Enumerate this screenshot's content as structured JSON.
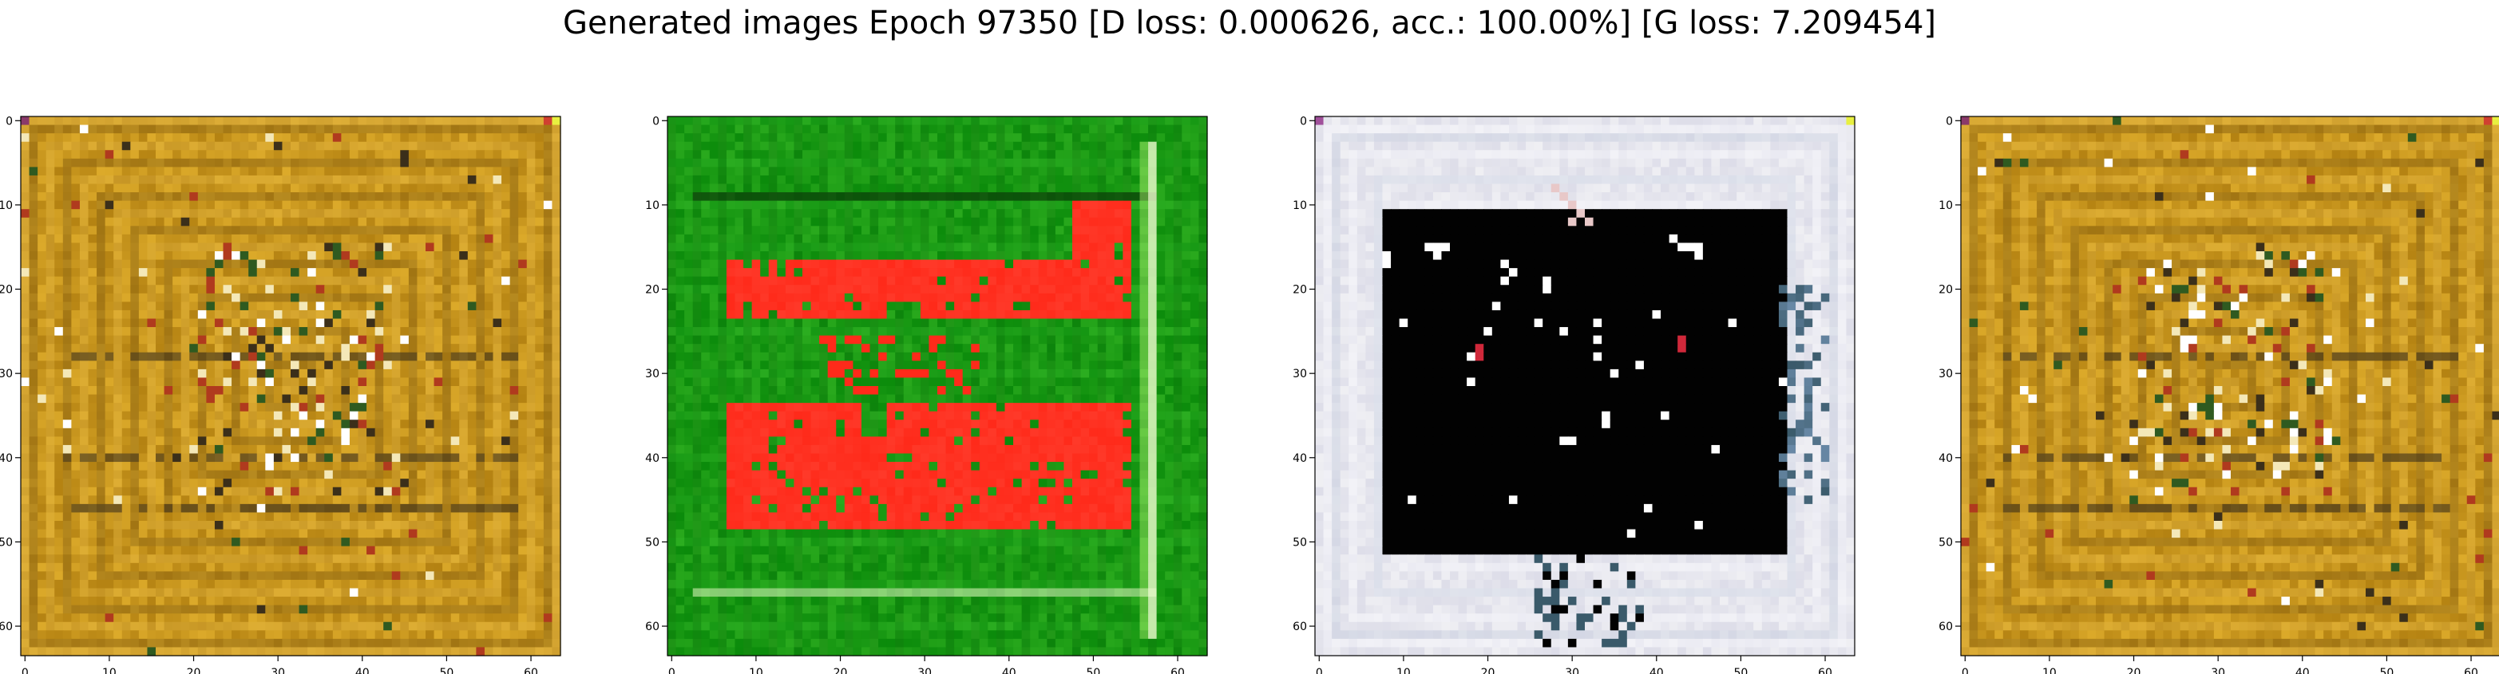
{
  "figure": {
    "title": "Generated images Epoch 97350 [D loss: 0.000626, acc.: 100.00%] [G loss: 7.209454]"
  },
  "axes": {
    "ticks": [
      "0",
      "10",
      "20",
      "30",
      "40",
      "50",
      "60"
    ]
  },
  "images": [
    {
      "name": "sample-1",
      "palette": {
        "base": "#c8961e",
        "light": "#e0b240",
        "dark": "#8a6414",
        "accents": [
          "#2f5a20",
          "#3b2f1a",
          "#f4e8b8",
          "#b03a1e",
          "#ffffff"
        ]
      }
    },
    {
      "name": "sample-2",
      "palette": {
        "base": "#1a9a14",
        "light": "#36c030",
        "dark": "#0f6e0c",
        "blob": "#ff2a1a",
        "accents": [
          "#f0ffd0",
          "#0a3a08",
          "#ff6050",
          "#c8ff80"
        ]
      }
    },
    {
      "name": "sample-3",
      "palette": {
        "base": "#e6e6ee",
        "light": "#f6f6fb",
        "dark": "#c6cede",
        "center": "#020202",
        "accents": [
          "#ffffff",
          "#d0283a",
          "#6a8aa8",
          "#3a5a6a"
        ]
      }
    },
    {
      "name": "sample-4",
      "palette": {
        "base": "#c8961e",
        "light": "#e0b240",
        "dark": "#8a6414",
        "accents": [
          "#2f5a20",
          "#3b2f1a",
          "#f4e8b8",
          "#b03a1e",
          "#ffffff"
        ]
      }
    }
  ]
}
